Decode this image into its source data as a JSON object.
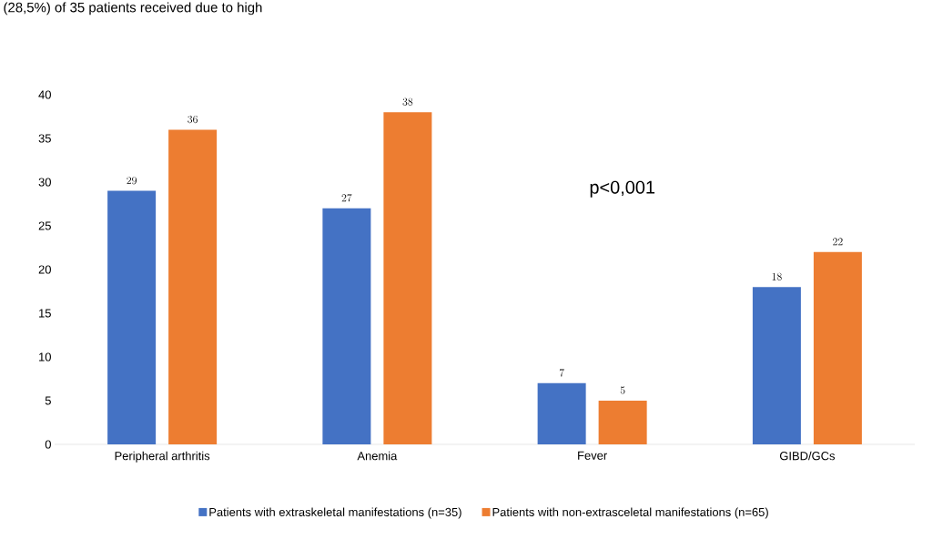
{
  "chart_data": {
    "type": "bar",
    "categories": [
      "Peripheral arthritis",
      "Anemia",
      "Fever",
      "GIBD/GCs"
    ],
    "series": [
      {
        "name": "Patients with extraskeletal manifestations (n=35)",
        "color": "#4472c4",
        "values": [
          29,
          27,
          7,
          18
        ]
      },
      {
        "name": "Patients with non-extrasceletal manifestations (n=65)",
        "color": "#ed7d31",
        "values": [
          36,
          38,
          5,
          22
        ]
      }
    ],
    "ylim": [
      0,
      40
    ],
    "yticks": [
      0,
      5,
      10,
      15,
      20,
      25,
      30,
      35,
      40
    ],
    "grid": false,
    "legend": "bottom",
    "data_labels": true,
    "annotations": [
      "(28,5%) of 35 patients received due to high",
      "p<0,001"
    ]
  }
}
